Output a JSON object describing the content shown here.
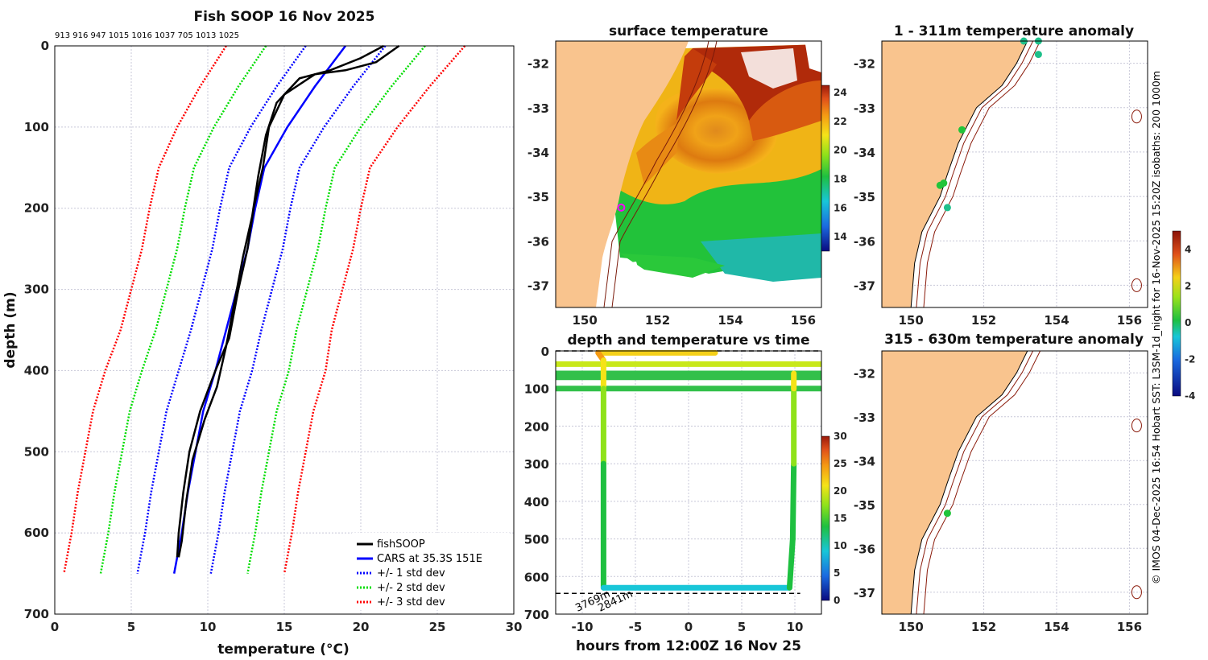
{
  "chart_data": [
    {
      "type": "line",
      "title": "Fish SOOP 16 Nov 2025",
      "top_annotation": "913 916 947 1015 1016 1037 705 1013 1025",
      "xlabel": "temperature (°C)",
      "ylabel": "depth (m)",
      "xlim": [
        0,
        30
      ],
      "ylim": [
        700,
        0
      ],
      "xticks": [
        "0",
        "5",
        "10",
        "15",
        "20",
        "25",
        "30"
      ],
      "yticks": [
        "0",
        "100",
        "200",
        "300",
        "400",
        "500",
        "600",
        "700"
      ],
      "depths": [
        0,
        50,
        100,
        150,
        200,
        250,
        300,
        350,
        400,
        450,
        500,
        550,
        600,
        650
      ],
      "cars_mean": [
        19,
        17,
        15.2,
        13.7,
        13.1,
        12.6,
        11.9,
        11.2,
        10.5,
        9.7,
        9.2,
        8.7,
        8.3,
        7.8
      ],
      "std_dev": [
        2.6,
        2.5,
        2.4,
        2.3,
        2.3,
        2.3,
        2.3,
        2.3,
        2.4,
        2.4,
        2.4,
        2.4,
        2.4,
        2.4
      ],
      "series": [
        {
          "name": "fishSOOP",
          "color": "#000000",
          "style": "solid",
          "profiles": [
            [
              [
                22.5,
                0
              ],
              [
                21,
                20
              ],
              [
                19,
                30
              ],
              [
                17,
                35
              ],
              [
                15,
                60
              ],
              [
                14,
                100
              ],
              [
                13.6,
                150
              ],
              [
                13,
                200
              ],
              [
                12.6,
                250
              ],
              [
                12,
                300
              ],
              [
                11.4,
                360
              ],
              [
                10.5,
                400
              ],
              [
                9.5,
                450
              ],
              [
                8.8,
                500
              ],
              [
                8.4,
                550
              ],
              [
                8.1,
                600
              ],
              [
                8.0,
                630
              ]
            ],
            [
              [
                21.5,
                0
              ],
              [
                20,
                15
              ],
              [
                18,
                30
              ],
              [
                16,
                40
              ],
              [
                14.5,
                70
              ],
              [
                13.8,
                110
              ],
              [
                13.3,
                160
              ],
              [
                12.9,
                210
              ],
              [
                12.3,
                260
              ],
              [
                11.7,
                320
              ],
              [
                11.2,
                370
              ],
              [
                10.6,
                420
              ],
              [
                9.8,
                460
              ],
              [
                9.0,
                510
              ],
              [
                8.6,
                560
              ],
              [
                8.3,
                610
              ],
              [
                8.1,
                630
              ]
            ]
          ]
        },
        {
          "name": "CARS at 35.3S 151E",
          "color": "#0000ff",
          "style": "solid"
        },
        {
          "name": "+/- 1 std dev",
          "color": "#0000ff",
          "style": "dotted",
          "k": 1
        },
        {
          "name": "+/- 2 std dev",
          "color": "#00dd00",
          "style": "dotted",
          "k": 2
        },
        {
          "name": "+/- 3 std dev",
          "color": "#ff0000",
          "style": "dotted",
          "k": 3
        }
      ]
    },
    {
      "type": "heatmap",
      "title": "surface temperature",
      "xlim": [
        149.2,
        156.5
      ],
      "ylim": [
        -37.5,
        -31.5
      ],
      "xticks": [
        "150",
        "152",
        "154",
        "156"
      ],
      "yticks": [
        "-32",
        "-33",
        "-34",
        "-35",
        "-36",
        "-37"
      ],
      "colorbar": {
        "min": 13,
        "max": 24.5,
        "ticks": [
          "14",
          "16",
          "18",
          "20",
          "22",
          "24"
        ]
      },
      "marker": {
        "lon": 151.0,
        "lat": -35.25,
        "color": "#ff00ff"
      }
    },
    {
      "type": "line",
      "title": "depth and temperature vs time",
      "xlabel": "hours from 12:00Z 16 Nov 25",
      "xlim": [
        -12.5,
        12.5
      ],
      "ylim": [
        700,
        0
      ],
      "xticks": [
        "-10",
        "-5",
        "0",
        "5",
        "10"
      ],
      "yticks": [
        "0",
        "100",
        "200",
        "300",
        "400",
        "500",
        "600",
        "700"
      ],
      "colorbar": {
        "min": 0,
        "max": 30,
        "ticks": [
          "0",
          "5",
          "10",
          "15",
          "20",
          "25",
          "30"
        ]
      },
      "dashed_depths": [
        0,
        60,
        70,
        100,
        645
      ],
      "track": [
        [
          -8.5,
          5,
          22
        ],
        [
          -8.0,
          25,
          21
        ],
        [
          -8.0,
          60,
          18
        ],
        [
          -8.0,
          100,
          17
        ],
        [
          -8.0,
          300,
          14
        ],
        [
          -8.0,
          500,
          12
        ],
        [
          -8.0,
          630,
          9
        ],
        [
          9.5,
          630,
          9
        ],
        [
          9.8,
          500,
          12
        ],
        [
          9.9,
          300,
          14
        ],
        [
          9.9,
          100,
          17
        ],
        [
          9.9,
          60,
          18
        ]
      ],
      "depth_labels": [
        "3769m",
        "2841m"
      ]
    },
    {
      "type": "scatter",
      "title": "1 - 311m temperature anomaly",
      "xlim": [
        149.2,
        156.5
      ],
      "ylim": [
        -37.5,
        -31.5
      ],
      "xticks": [
        "150",
        "152",
        "154",
        "156"
      ],
      "yticks": [
        "-32",
        "-33",
        "-34",
        "-35",
        "-36",
        "-37"
      ],
      "points": [
        [
          153.1,
          -31.5,
          1.2
        ],
        [
          153.5,
          -31.5,
          1.2
        ],
        [
          153.5,
          -31.8,
          1.0
        ],
        [
          151.4,
          -33.5,
          0.6
        ],
        [
          150.9,
          -34.7,
          0.6
        ],
        [
          150.8,
          -34.75,
          0.7
        ],
        [
          151.0,
          -35.25,
          1.0
        ]
      ]
    },
    {
      "type": "scatter",
      "title": "315 - 630m temperature anomaly",
      "xlim": [
        149.2,
        156.5
      ],
      "ylim": [
        -37.5,
        -31.5
      ],
      "xticks": [
        "150",
        "152",
        "154",
        "156"
      ],
      "yticks": [
        "-32",
        "-33",
        "-34",
        "-35",
        "-36",
        "-37"
      ],
      "points": [
        [
          151.0,
          -35.2,
          0.6
        ]
      ],
      "colorbar": {
        "min": -4,
        "max": 5,
        "ticks": [
          "4",
          "2",
          "0",
          "-2",
          "-4"
        ]
      }
    }
  ],
  "side_caption": "© IMOS 04-Dec-2025 16:54 Hobart SST: L3SM-1d_night for 16-Nov-2025 15:20Z isobaths: 200  1000m"
}
